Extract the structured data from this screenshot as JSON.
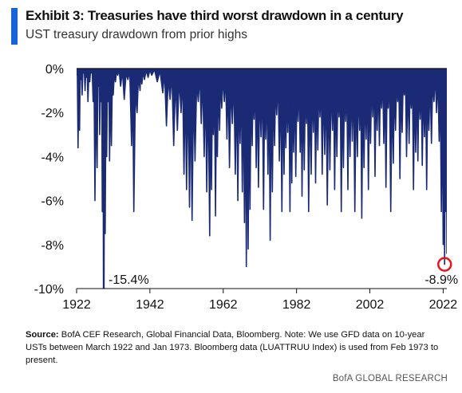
{
  "header": {
    "title": "Exhibit 3: Treasuries have third worst drawdown  in a century",
    "subtitle": "UST treasury drawdown from prior highs"
  },
  "colors": {
    "accent": "#1565d8",
    "series": "#1a2a75",
    "highlight": "#e8141c"
  },
  "footer": {
    "source_label": "Source:",
    "source_text": " BofA CEF Research, Global Financial Data, Bloomberg. Note: We use GFD data on 10-year USTs between March 1922 and Jan 1973.  Bloomberg data (LUATTRUU Index) is used from Feb 1973 to present.",
    "credit": "BofA GLOBAL RESEARCH"
  },
  "chart_data": {
    "type": "area",
    "ylim": [
      -10,
      0
    ],
    "xlim": [
      1922,
      2023
    ],
    "y_ticks": [
      0,
      -2,
      -4,
      -6,
      -8,
      -10
    ],
    "y_tick_labels": [
      "0%",
      "-2%",
      "-4%",
      "-6%",
      "-8%",
      "-10%"
    ],
    "x_ticks": [
      1922,
      1942,
      1962,
      1982,
      2002,
      2022
    ],
    "x_tick_labels": [
      "1922",
      "1942",
      "1962",
      "1982",
      "2002",
      "2022"
    ],
    "grid": false,
    "legend": "none",
    "series": [
      {
        "x": [
          1922.0,
          1922.4,
          1922.8,
          1923.1,
          1923.5,
          1923.9,
          1924.3,
          1924.7,
          1925.1,
          1925.6,
          1926.0,
          1926.5,
          1927.0,
          1927.6,
          1928.0,
          1928.3,
          1928.7,
          1929.0,
          1929.4,
          1929.8,
          1930.2,
          1930.6,
          1931.0,
          1931.5,
          1932.0,
          1932.6,
          1933.2,
          1934.0,
          1935.0,
          1936.0,
          1937.0,
          1937.6,
          1938.5,
          1939.3,
          1939.8,
          1940.5,
          1941.5,
          1942.5,
          1944.0,
          1945.5,
          1946.5,
          1947.5,
          1948.5,
          1949.5,
          1950.5,
          1951.3,
          1952.0,
          1952.8,
          1953.5,
          1954.3,
          1955.2,
          1956.0,
          1956.8,
          1957.5,
          1958.3,
          1958.8,
          1959.3,
          1959.9,
          1960.4,
          1961.0,
          1961.6,
          1962.3,
          1963.0,
          1963.7,
          1964.5,
          1965.3,
          1966.0,
          1966.6,
          1967.2,
          1967.8,
          1968.3,
          1968.8,
          1969.3,
          1969.9,
          1970.4,
          1971.0,
          1971.6,
          1972.3,
          1973.0,
          1973.6,
          1974.2,
          1974.8,
          1975.4,
          1976.0,
          1976.6,
          1977.3,
          1978.0,
          1978.6,
          1979.1,
          1979.6,
          1980.2,
          1980.7,
          1981.2,
          1981.8,
          1982.4,
          1983.0,
          1983.5,
          1984.1,
          1984.7,
          1985.3,
          1986.0,
          1986.6,
          1987.2,
          1987.8,
          1988.4,
          1989.0,
          1989.7,
          1990.4,
          1991.1,
          1991.8,
          1992.4,
          1993.0,
          1993.6,
          1994.2,
          1994.8,
          1995.4,
          1996.0,
          1996.6,
          1997.2,
          1997.9,
          1998.6,
          1999.2,
          1999.8,
          2000.4,
          2001.0,
          2001.6,
          2002.2,
          2002.8,
          2003.4,
          2004.0,
          2004.6,
          2005.2,
          2005.8,
          2006.4,
          2007.0,
          2007.7,
          2008.4,
          2009.0,
          2009.6,
          2010.2,
          2010.8,
          2011.4,
          2012.0,
          2012.7,
          2013.3,
          2013.9,
          2014.5,
          2015.1,
          2015.7,
          2016.3,
          2016.9,
          2017.5,
          2018.1,
          2018.8,
          2019.5,
          2020.2,
          2020.9,
          2021.5,
          2022.0,
          2022.4,
          2022.8,
          2023.0
        ],
        "y": [
          -0.3,
          -3.6,
          -2.8,
          -0.5,
          -1.2,
          -0.2,
          -1.0,
          -0.4,
          -1.5,
          -0.6,
          -0.2,
          -1.5,
          -6.0,
          -4.5,
          -0.8,
          -3.0,
          -1.5,
          -6.5,
          -15.4,
          -7.5,
          -4.0,
          -1.5,
          -4.2,
          -3.5,
          -1.2,
          -0.6,
          -0.3,
          -0.8,
          -1.4,
          -0.5,
          -3.5,
          -6.5,
          -2.0,
          -1.0,
          -0.7,
          -0.5,
          -0.4,
          -0.3,
          -0.6,
          -1.1,
          -2.6,
          -1.4,
          -3.5,
          -2.8,
          -2.0,
          -4.8,
          -5.5,
          -6.3,
          -6.9,
          -4.2,
          -1.5,
          -2.5,
          -4.0,
          -5.6,
          -7.6,
          -5.5,
          -3.0,
          -6.7,
          -4.0,
          -2.8,
          -1.8,
          -1.5,
          -3.2,
          -4.5,
          -2.5,
          -4.8,
          -6.0,
          -3.4,
          -5.6,
          -7.0,
          -9.0,
          -8.2,
          -6.4,
          -3.5,
          -2.3,
          -4.5,
          -5.4,
          -3.1,
          -6.4,
          -3.2,
          -4.8,
          -7.8,
          -5.6,
          -3.5,
          -2.1,
          -4.2,
          -6.5,
          -4.8,
          -3.6,
          -2.9,
          -6.5,
          -5.2,
          -3.8,
          -4.9,
          -2.4,
          -3.8,
          -5.8,
          -4.6,
          -2.5,
          -6.5,
          -4.8,
          -2.9,
          -5.2,
          -3.7,
          -2.2,
          -4.8,
          -3.9,
          -6.2,
          -4.6,
          -2.8,
          -5.5,
          -4.0,
          -2.2,
          -6.5,
          -4.5,
          -2.4,
          -5.5,
          -4.0,
          -3.3,
          -6.5,
          -4.0,
          -2.8,
          -6.8,
          -4.5,
          -3.2,
          -5.5,
          -3.4,
          -2.2,
          -4.9,
          -2.8,
          -3.5,
          -1.8,
          -3.4,
          -5.4,
          -1.8,
          -6.5,
          -4.3,
          -2.8,
          -1.5,
          -5.0,
          -2.9,
          -1.2,
          -4.0,
          -3.4,
          -1.8,
          -5.5,
          -3.8,
          -4.2,
          -2.3,
          -4.4,
          -3.1,
          -5.5,
          -2.8,
          -3.4,
          -1.5,
          -2.0,
          -3.3,
          -6.5,
          -8.0,
          -8.9,
          -6.5,
          -8.4
        ],
        "values_note_free": true
      }
    ],
    "annotations": [
      {
        "label": "-15.4%",
        "x": 1929.4,
        "y": -15.4
      },
      {
        "label": "-8.9%",
        "x": 2022.4,
        "y": -8.9
      }
    ]
  }
}
